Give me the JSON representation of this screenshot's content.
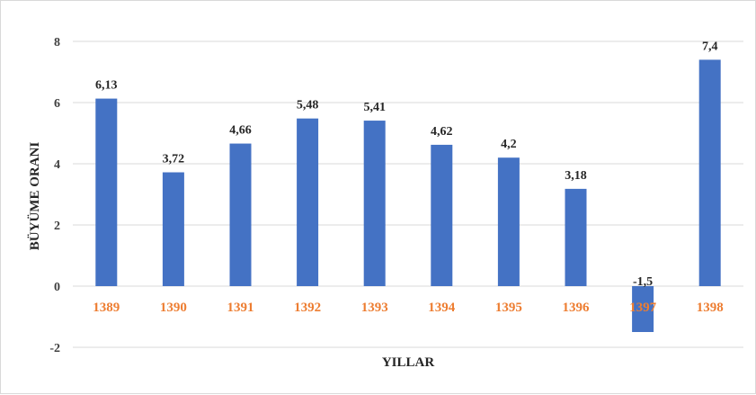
{
  "chart_data": {
    "type": "bar",
    "title": "",
    "xlabel": "YILLAR",
    "ylabel": "BÜYÜME ORANI",
    "categories": [
      "1389",
      "1390",
      "1391",
      "1392",
      "1393",
      "1394",
      "1395",
      "1396",
      "1397",
      "1398"
    ],
    "values": [
      6.13,
      3.72,
      4.66,
      5.48,
      5.41,
      4.62,
      4.2,
      3.18,
      -1.5,
      7.4
    ],
    "data_labels": [
      "6,13",
      "3,72",
      "4,66",
      "5,48",
      "5,41",
      "4,62",
      "4,2",
      "3,18",
      "-1,5",
      "7,4"
    ],
    "ylim": [
      -2,
      8
    ],
    "yticks": [
      8,
      6,
      4,
      2,
      0,
      -2
    ],
    "ytick_labels": [
      "8",
      "6",
      "4",
      "2",
      "0",
      "-2"
    ],
    "grid": true,
    "legend": "none",
    "colors": {
      "bar": "#4472C4",
      "category_label": "#ED7D31",
      "gridline": "#D9D9D9",
      "baseline": "#D9D9D9",
      "tick_label": "#404040",
      "data_label": "#262626"
    }
  }
}
